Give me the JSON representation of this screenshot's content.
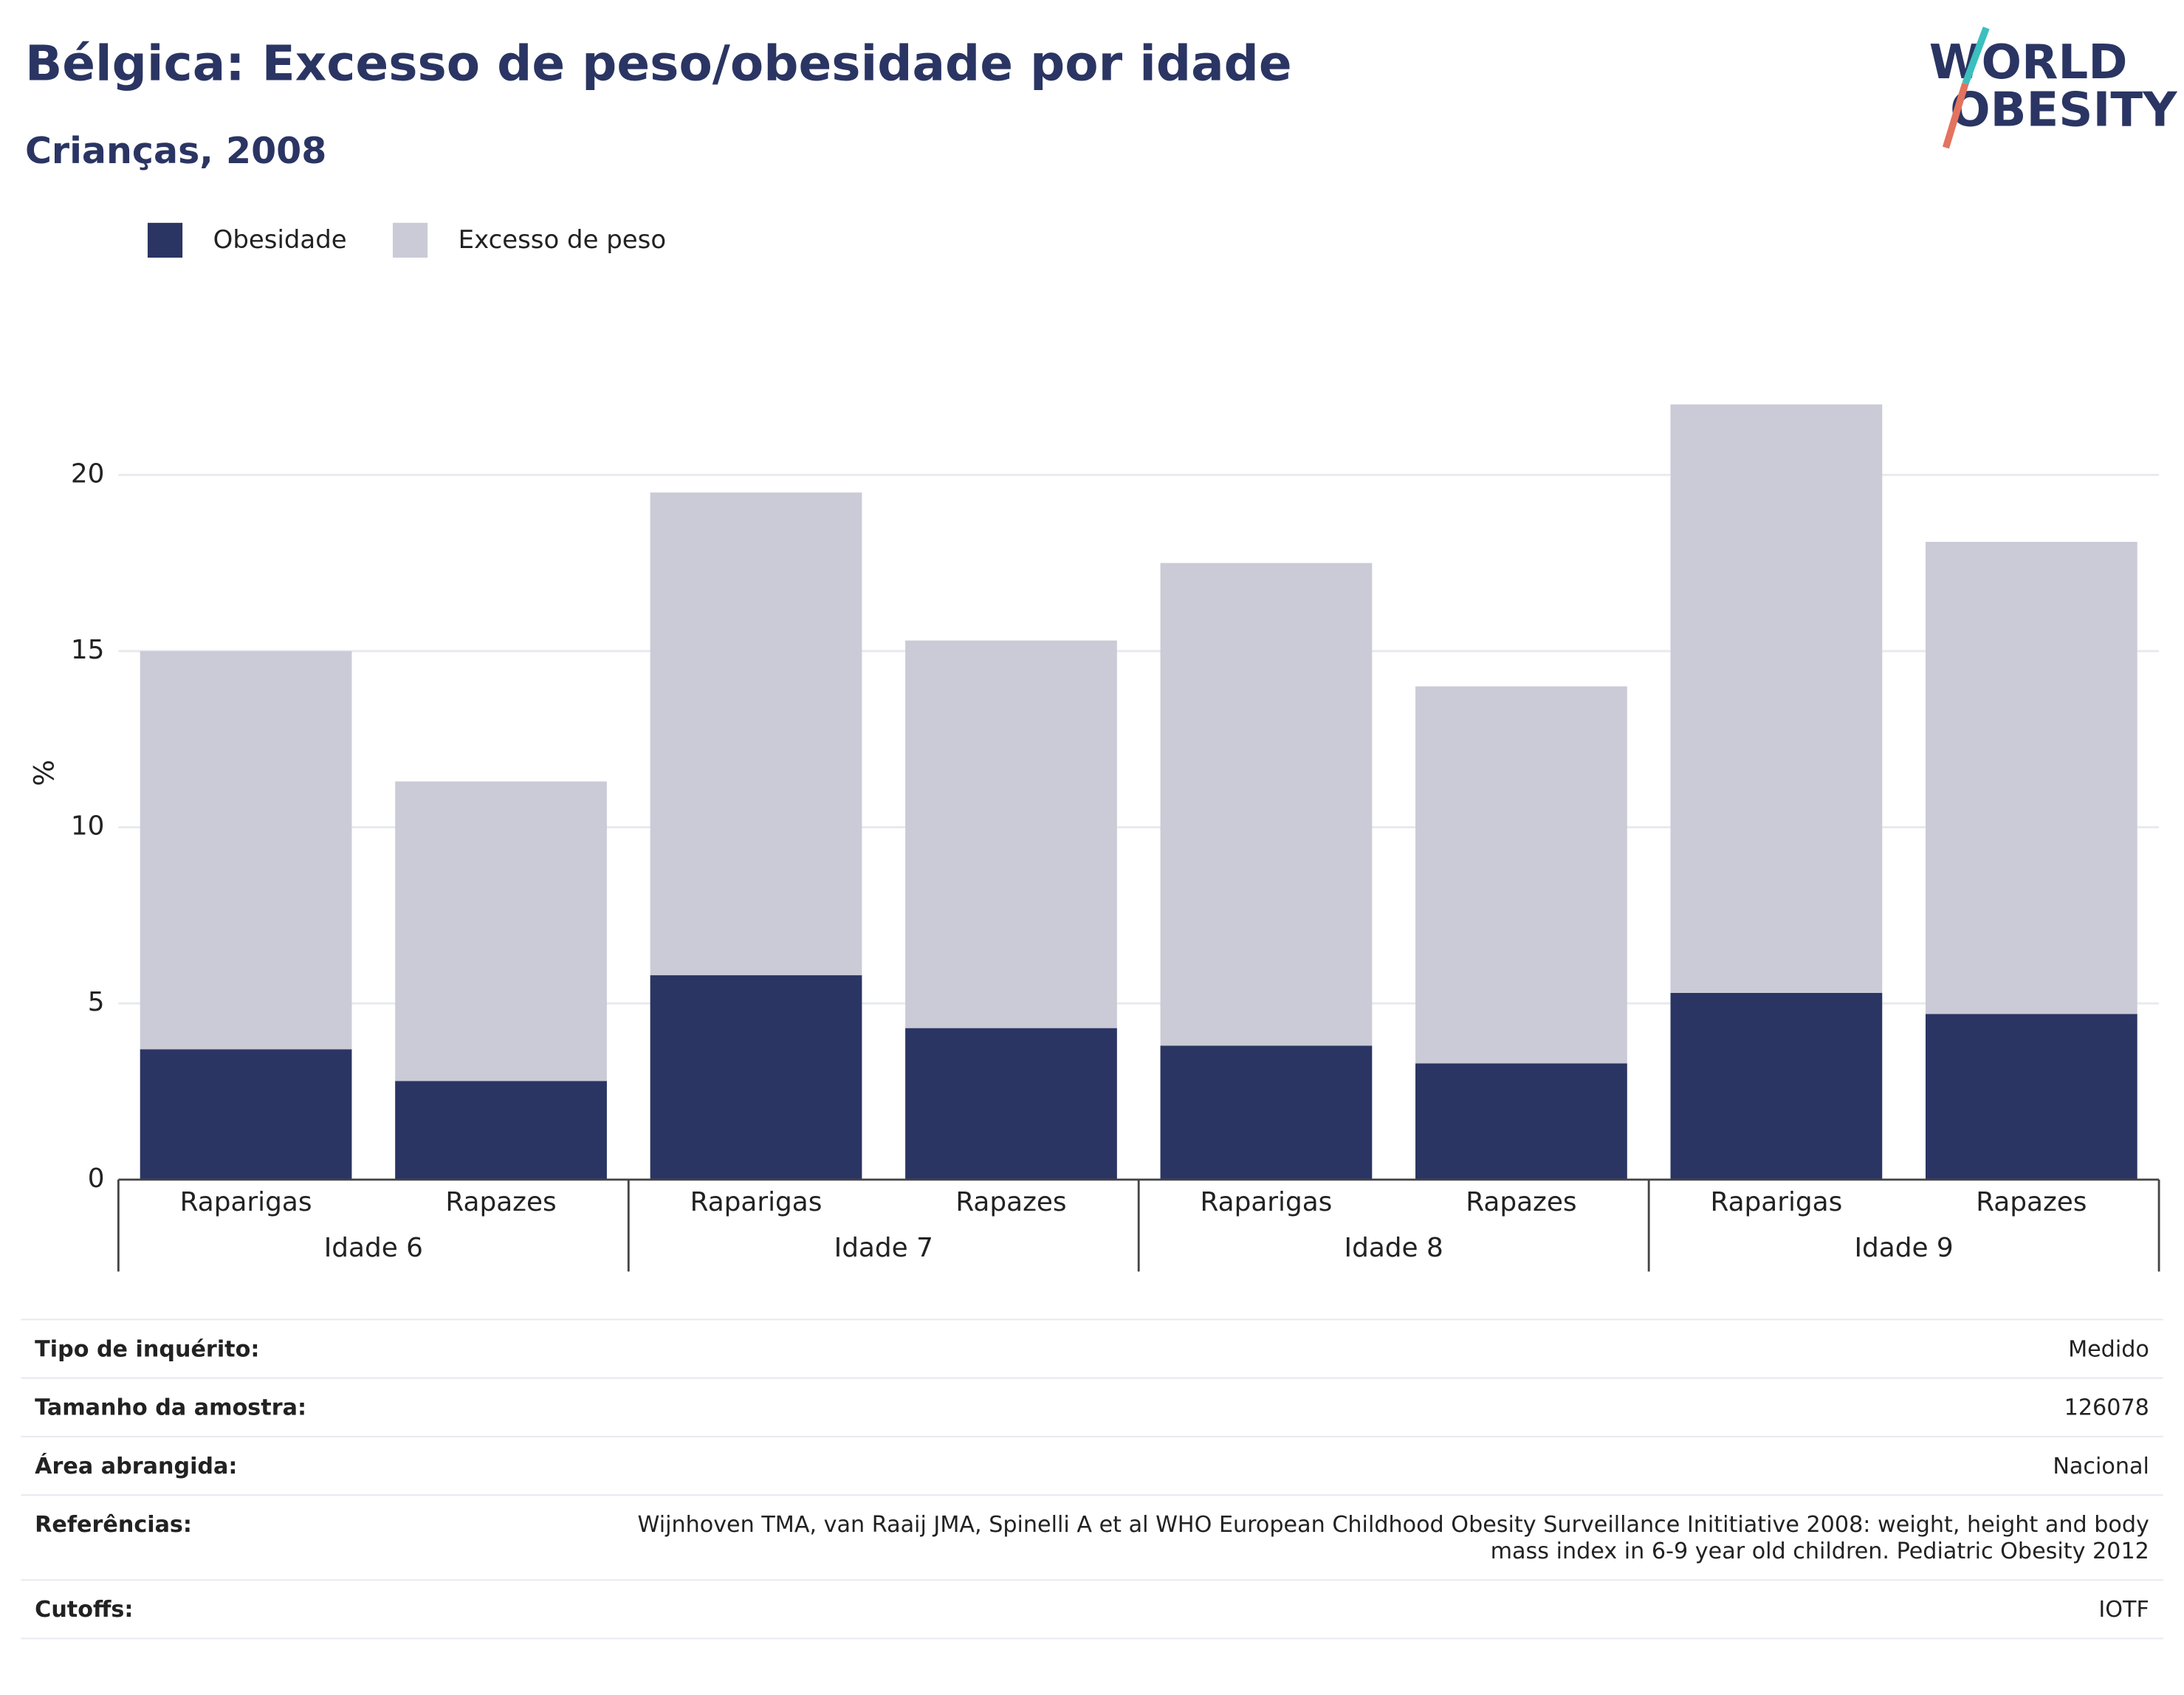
{
  "chart_data": {
    "type": "stacked_bar",
    "title": "Bélgica: Excesso de peso/obesidade por idade",
    "subtitle": "Crianças, 2008",
    "y_label": "%",
    "categories": [
      "Raparigas",
      "Rapazes",
      "Raparigas",
      "Rapazes",
      "Raparigas",
      "Rapazes",
      "Raparigas",
      "Rapazes"
    ],
    "groups": [
      "Idade 6",
      "Idade 7",
      "Idade 8",
      "Idade 9"
    ],
    "series": [
      {
        "name": "Obesidade",
        "color": "#2a3563",
        "values": [
          3.7,
          2.8,
          5.8,
          4.3,
          3.8,
          3.3,
          5.3,
          4.7
        ]
      },
      {
        "name": "Excesso de peso",
        "color": "#cacbd7",
        "values": [
          11.3,
          8.5,
          13.7,
          11.0,
          13.7,
          10.7,
          16.7,
          13.4
        ]
      }
    ],
    "ylim": [
      0,
      23.2
    ],
    "yticks": [
      0,
      5,
      10,
      15,
      20
    ],
    "grid": true,
    "legend": "top-left"
  },
  "logo": [
    "WORLD",
    "OBESITY"
  ],
  "table": {
    "rows": [
      [
        "Tipo de inquérito:",
        "Medido"
      ],
      [
        "Tamanho da amostra:",
        "126078"
      ],
      [
        "Área abrangida:",
        "Nacional"
      ],
      [
        "Referências:",
        "Wijnhoven TMA, van Raaij JMA, Spinelli A et al WHO European Childhood Obesity Surveillance Inititiative 2008: weight, height and body mass index in 6-9 year old children. Pediatric Obesity 2012"
      ],
      [
        "Cutoffs:",
        "IOTF"
      ]
    ]
  }
}
